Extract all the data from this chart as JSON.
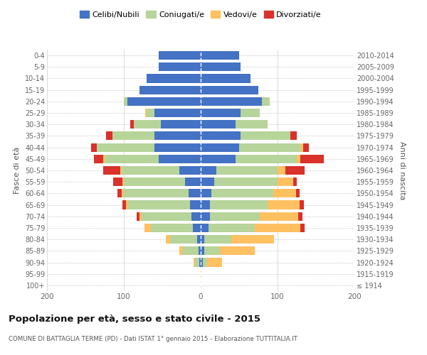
{
  "age_groups": [
    "100+",
    "95-99",
    "90-94",
    "85-89",
    "80-84",
    "75-79",
    "70-74",
    "65-69",
    "60-64",
    "55-59",
    "50-54",
    "45-49",
    "40-44",
    "35-39",
    "30-34",
    "25-29",
    "20-24",
    "15-19",
    "10-14",
    "5-9",
    "0-4"
  ],
  "birth_years": [
    "≤ 1914",
    "1915-1919",
    "1920-1924",
    "1925-1929",
    "1930-1934",
    "1935-1939",
    "1940-1944",
    "1945-1949",
    "1950-1954",
    "1955-1959",
    "1960-1964",
    "1965-1969",
    "1970-1974",
    "1975-1979",
    "1980-1984",
    "1985-1989",
    "1990-1994",
    "1995-1999",
    "2000-2004",
    "2005-2009",
    "2010-2014"
  ],
  "male": {
    "celibi": [
      0,
      0,
      2,
      3,
      5,
      10,
      12,
      14,
      16,
      20,
      28,
      55,
      60,
      60,
      52,
      60,
      95,
      80,
      70,
      55,
      55
    ],
    "coniugati": [
      0,
      0,
      5,
      20,
      35,
      55,
      65,
      80,
      85,
      80,
      75,
      70,
      75,
      55,
      35,
      10,
      5,
      0,
      0,
      0,
      0
    ],
    "vedovi": [
      0,
      0,
      2,
      5,
      5,
      8,
      3,
      3,
      2,
      2,
      2,
      2,
      0,
      0,
      0,
      2,
      0,
      0,
      0,
      0,
      0
    ],
    "divorziati": [
      0,
      0,
      0,
      0,
      0,
      0,
      3,
      5,
      5,
      12,
      22,
      12,
      8,
      8,
      5,
      0,
      0,
      0,
      0,
      0,
      0
    ]
  },
  "female": {
    "nubili": [
      0,
      0,
      3,
      5,
      5,
      10,
      12,
      12,
      14,
      18,
      20,
      45,
      50,
      52,
      45,
      52,
      80,
      75,
      65,
      52,
      50
    ],
    "coniugate": [
      0,
      0,
      5,
      20,
      35,
      60,
      65,
      75,
      80,
      82,
      80,
      80,
      80,
      65,
      42,
      25,
      10,
      0,
      0,
      0,
      0
    ],
    "vedove": [
      0,
      1,
      20,
      45,
      55,
      60,
      50,
      42,
      30,
      20,
      10,
      5,
      3,
      0,
      0,
      0,
      0,
      0,
      0,
      0,
      0
    ],
    "divorziate": [
      0,
      0,
      0,
      0,
      0,
      5,
      5,
      5,
      5,
      5,
      25,
      30,
      8,
      8,
      0,
      0,
      0,
      0,
      0,
      0,
      0
    ]
  },
  "colors": {
    "celibi": "#4472c4",
    "coniugati": "#b7d49a",
    "vedovi": "#ffc061",
    "divorziati": "#d9312b"
  },
  "title": "Popolazione per età, sesso e stato civile - 2015",
  "subtitle": "COMUNE DI BATTAGLIA TERME (PD) - Dati ISTAT 1° gennaio 2015 - Elaborazione TUTTITALIA.IT",
  "ylabel_left": "Fasce di età",
  "ylabel_right": "Anni di nascita",
  "xlim": 200,
  "bg_color": "#ffffff",
  "grid_color": "#cccccc",
  "legend_labels": [
    "Celibi/Nubili",
    "Coniugati/e",
    "Vedovi/e",
    "Divorziati/e"
  ]
}
